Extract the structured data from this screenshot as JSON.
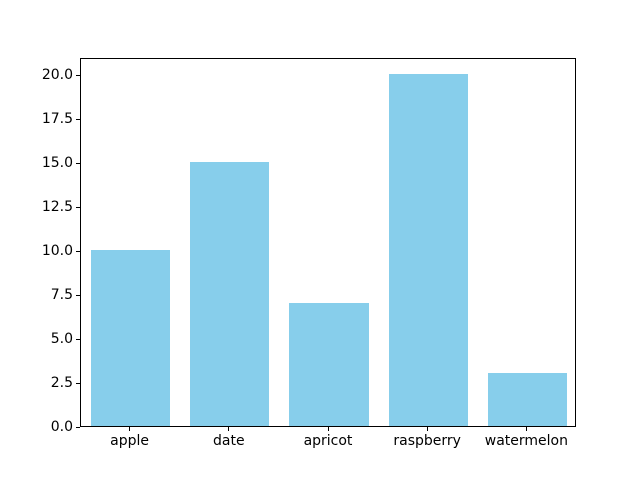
{
  "chart_data": {
    "type": "bar",
    "title": "",
    "xlabel": "",
    "ylabel": "",
    "categories": [
      "apple",
      "date",
      "apricot",
      "raspberry",
      "watermelon"
    ],
    "values": [
      10,
      15,
      7,
      20,
      3
    ],
    "bar_color": "#87CEEB",
    "axis_color": "#000000",
    "background_color": "#ffffff",
    "ylim": [
      0,
      21
    ],
    "yticks": [
      0.0,
      2.5,
      5.0,
      7.5,
      10.0,
      12.5,
      15.0,
      17.5,
      20.0
    ],
    "ytick_labels": [
      "0.0",
      "2.5",
      "5.0",
      "7.5",
      "10.0",
      "12.5",
      "15.0",
      "17.5",
      "20.0"
    ],
    "grid": false,
    "legend_position": "none",
    "bar_width_fraction": 0.8
  }
}
